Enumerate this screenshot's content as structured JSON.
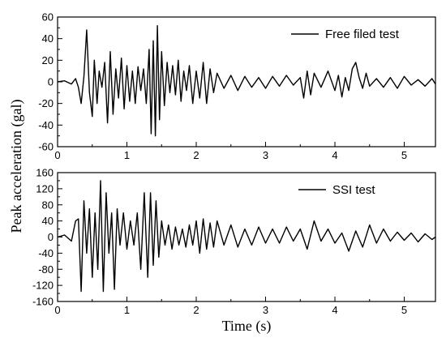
{
  "shared": {
    "xlabel": "Time (s)",
    "ylabel": "Peak acceleration (gal)"
  },
  "chart_data": [
    {
      "type": "line",
      "name": "free-field",
      "xlim": [
        0,
        5.45
      ],
      "ylim": [
        -60,
        60
      ],
      "xticks": [
        0,
        1,
        2,
        3,
        4,
        5
      ],
      "yticks": [
        -60,
        -40,
        -20,
        0,
        20,
        40,
        60
      ],
      "legend_position": "top-right",
      "series": [
        {
          "name": "Free filed test",
          "x": [
            0,
            0.1,
            0.2,
            0.26,
            0.3,
            0.34,
            0.38,
            0.42,
            0.46,
            0.5,
            0.53,
            0.57,
            0.6,
            0.64,
            0.68,
            0.72,
            0.76,
            0.8,
            0.84,
            0.88,
            0.92,
            0.96,
            1.0,
            1.04,
            1.08,
            1.12,
            1.16,
            1.2,
            1.24,
            1.28,
            1.32,
            1.35,
            1.38,
            1.41,
            1.44,
            1.47,
            1.5,
            1.54,
            1.58,
            1.62,
            1.66,
            1.7,
            1.74,
            1.78,
            1.82,
            1.86,
            1.9,
            1.95,
            2.0,
            2.05,
            2.1,
            2.15,
            2.2,
            2.25,
            2.3,
            2.4,
            2.5,
            2.6,
            2.7,
            2.8,
            2.9,
            3.0,
            3.1,
            3.2,
            3.3,
            3.4,
            3.5,
            3.55,
            3.6,
            3.65,
            3.7,
            3.8,
            3.9,
            4.0,
            4.05,
            4.1,
            4.15,
            4.2,
            4.25,
            4.3,
            4.35,
            4.4,
            4.45,
            4.5,
            4.6,
            4.7,
            4.8,
            4.9,
            5.0,
            5.1,
            5.2,
            5.3,
            5.4,
            5.45
          ],
          "values": [
            0,
            1,
            -2,
            3,
            -5,
            -20,
            5,
            48,
            -10,
            -32,
            20,
            -20,
            10,
            -5,
            18,
            -38,
            28,
            -30,
            12,
            -15,
            22,
            -25,
            15,
            -18,
            10,
            -20,
            14,
            -8,
            12,
            -20,
            30,
            -48,
            38,
            -50,
            52,
            -35,
            28,
            -22,
            18,
            -10,
            15,
            -12,
            20,
            -18,
            10,
            -8,
            15,
            -20,
            10,
            -15,
            18,
            -20,
            12,
            -10,
            8,
            -6,
            6,
            -8,
            5,
            -5,
            4,
            -6,
            5,
            -4,
            6,
            -3,
            4,
            -15,
            10,
            -12,
            8,
            -5,
            10,
            -8,
            6,
            -14,
            4,
            -8,
            12,
            18,
            4,
            -6,
            8,
            -4,
            3,
            -5,
            4,
            -6,
            5,
            -3,
            2,
            -4,
            3,
            -2
          ]
        }
      ]
    },
    {
      "type": "line",
      "name": "ssi",
      "xlim": [
        0,
        5.45
      ],
      "ylim": [
        -160,
        160
      ],
      "xticks": [
        0,
        1,
        2,
        3,
        4,
        5
      ],
      "yticks": [
        -160,
        -120,
        -80,
        -40,
        0,
        40,
        80,
        120,
        160
      ],
      "legend_position": "top-right",
      "series": [
        {
          "name": "SSI test",
          "x": [
            0,
            0.1,
            0.2,
            0.26,
            0.3,
            0.34,
            0.38,
            0.42,
            0.46,
            0.5,
            0.54,
            0.58,
            0.62,
            0.66,
            0.7,
            0.74,
            0.78,
            0.82,
            0.86,
            0.9,
            0.95,
            1.0,
            1.05,
            1.1,
            1.15,
            1.2,
            1.25,
            1.3,
            1.34,
            1.38,
            1.42,
            1.46,
            1.5,
            1.55,
            1.6,
            1.65,
            1.7,
            1.75,
            1.8,
            1.85,
            1.9,
            1.95,
            2.0,
            2.05,
            2.1,
            2.15,
            2.2,
            2.25,
            2.3,
            2.4,
            2.5,
            2.6,
            2.7,
            2.8,
            2.9,
            3.0,
            3.1,
            3.2,
            3.3,
            3.4,
            3.5,
            3.6,
            3.7,
            3.8,
            3.9,
            4.0,
            4.1,
            4.2,
            4.3,
            4.4,
            4.5,
            4.6,
            4.7,
            4.8,
            4.9,
            5.0,
            5.1,
            5.2,
            5.3,
            5.4,
            5.45
          ],
          "values": [
            0,
            5,
            -10,
            40,
            45,
            -135,
            90,
            -40,
            70,
            -100,
            60,
            -80,
            140,
            -135,
            110,
            -40,
            60,
            -130,
            70,
            -20,
            60,
            -30,
            40,
            -20,
            60,
            -80,
            110,
            -100,
            110,
            -70,
            90,
            -50,
            40,
            -20,
            30,
            -30,
            25,
            -20,
            20,
            -25,
            30,
            -20,
            40,
            -40,
            45,
            -30,
            35,
            -25,
            40,
            -20,
            30,
            -25,
            20,
            -20,
            25,
            -15,
            20,
            -15,
            25,
            -10,
            20,
            -30,
            40,
            -10,
            20,
            -15,
            10,
            -35,
            15,
            -25,
            30,
            -15,
            20,
            -10,
            12,
            -8,
            10,
            -12,
            8,
            -6,
            0
          ]
        }
      ]
    }
  ]
}
